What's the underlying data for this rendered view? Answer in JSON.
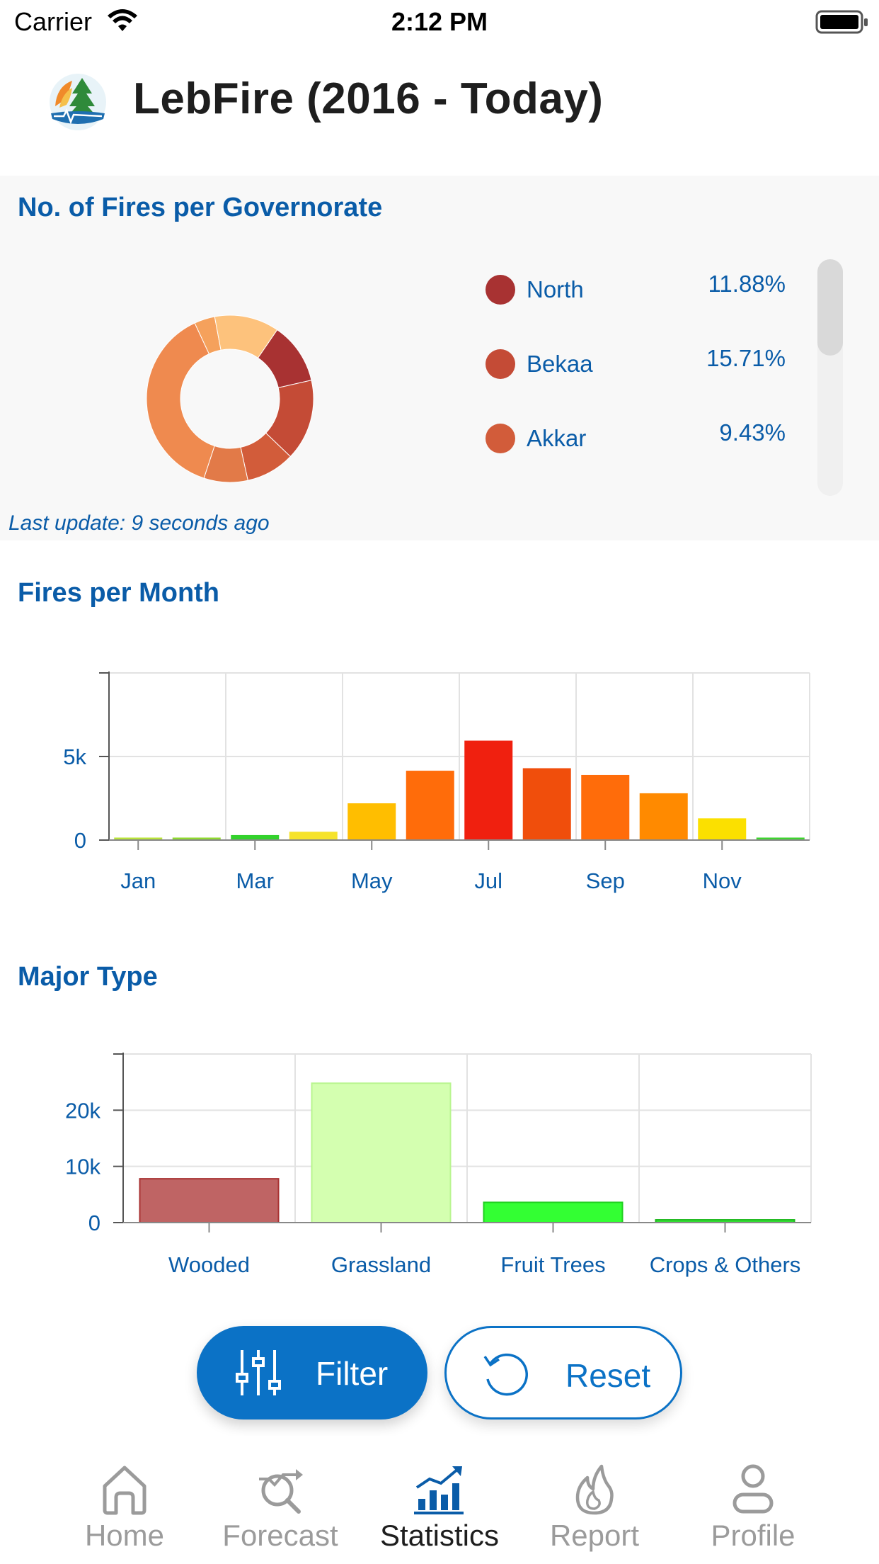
{
  "status_bar": {
    "carrier": "Carrier",
    "time": "2:12 PM"
  },
  "header": {
    "title": "LebFire (2016 - Today)"
  },
  "governorate_card": {
    "title": "No. of Fires per Governorate",
    "last_update": "Last update: 9 seconds ago",
    "legend": [
      {
        "name": "North",
        "value": "11.88%",
        "color": "#a83232"
      },
      {
        "name": "Bekaa",
        "value": "15.71%",
        "color": "#c44b36"
      },
      {
        "name": "Akkar",
        "value": "9.43%",
        "color": "#d25c3a"
      }
    ]
  },
  "monthly_section": {
    "title": "Fires per Month"
  },
  "type_section": {
    "title": "Major Type"
  },
  "buttons": {
    "filter_label": "Filter",
    "reset_label": "Reset"
  },
  "tabs": [
    {
      "label": "Home",
      "icon": "home-icon",
      "active": false
    },
    {
      "label": "Forecast",
      "icon": "forecast-icon",
      "active": false
    },
    {
      "label": "Statistics",
      "icon": "statistics-icon",
      "active": true
    },
    {
      "label": "Report",
      "icon": "flame-icon",
      "active": false
    },
    {
      "label": "Profile",
      "icon": "profile-icon",
      "active": false
    }
  ],
  "colors": {
    "accent": "#0a5ca8",
    "button_blue": "#0b72c6"
  },
  "chart_data": [
    {
      "type": "pie",
      "title": "No. of Fires per Governorate",
      "categories": [
        "North",
        "Bekaa",
        "Akkar",
        "",
        "",
        "",
        ""
      ],
      "values": [
        11.88,
        15.71,
        9.43,
        8.5,
        38.0,
        4.0,
        12.5
      ],
      "colors": [
        "#a83232",
        "#c44b36",
        "#d25c3a",
        "#e27a48",
        "#ef8a4f",
        "#f5a15c",
        "#fdc27c"
      ],
      "legend_position": "right"
    },
    {
      "type": "bar",
      "title": "Fires per Month",
      "categories": [
        "Jan",
        "Feb",
        "Mar",
        "Apr",
        "May",
        "Jun",
        "Jul",
        "Aug",
        "Sep",
        "Oct",
        "Nov",
        "Dec"
      ],
      "tick_labels": [
        "Jan",
        "Mar",
        "May",
        "Jul",
        "Sep",
        "Nov"
      ],
      "values": [
        150,
        150,
        300,
        500,
        2200,
        4150,
        5950,
        4300,
        3900,
        2800,
        1300,
        150
      ],
      "colors": [
        "#b8e33a",
        "#8fd92f",
        "#33d22c",
        "#f6e32a",
        "#ffbe00",
        "#ff6c0a",
        "#f0200f",
        "#f04e0c",
        "#ff6c0a",
        "#ff8a00",
        "#fbe000",
        "#3ed42e"
      ],
      "y_ticks": [
        "0",
        "5k"
      ],
      "ylim": [
        0,
        10000
      ],
      "grid": true
    },
    {
      "type": "bar",
      "title": "Major Type",
      "categories": [
        "Wooded",
        "Grassland",
        "Fruit Trees",
        "Crops & Others"
      ],
      "values": [
        7800,
        24800,
        3600,
        500
      ],
      "colors": [
        "#bf6464",
        "#d4ffb0",
        "#33ff33",
        "#33dd33"
      ],
      "border_colors": [
        "#a83232",
        "#b9f58f",
        "#1fcf1f",
        "#1fb81f"
      ],
      "y_ticks": [
        "0",
        "10k",
        "20k"
      ],
      "ylim": [
        0,
        30000
      ],
      "grid": true
    }
  ]
}
